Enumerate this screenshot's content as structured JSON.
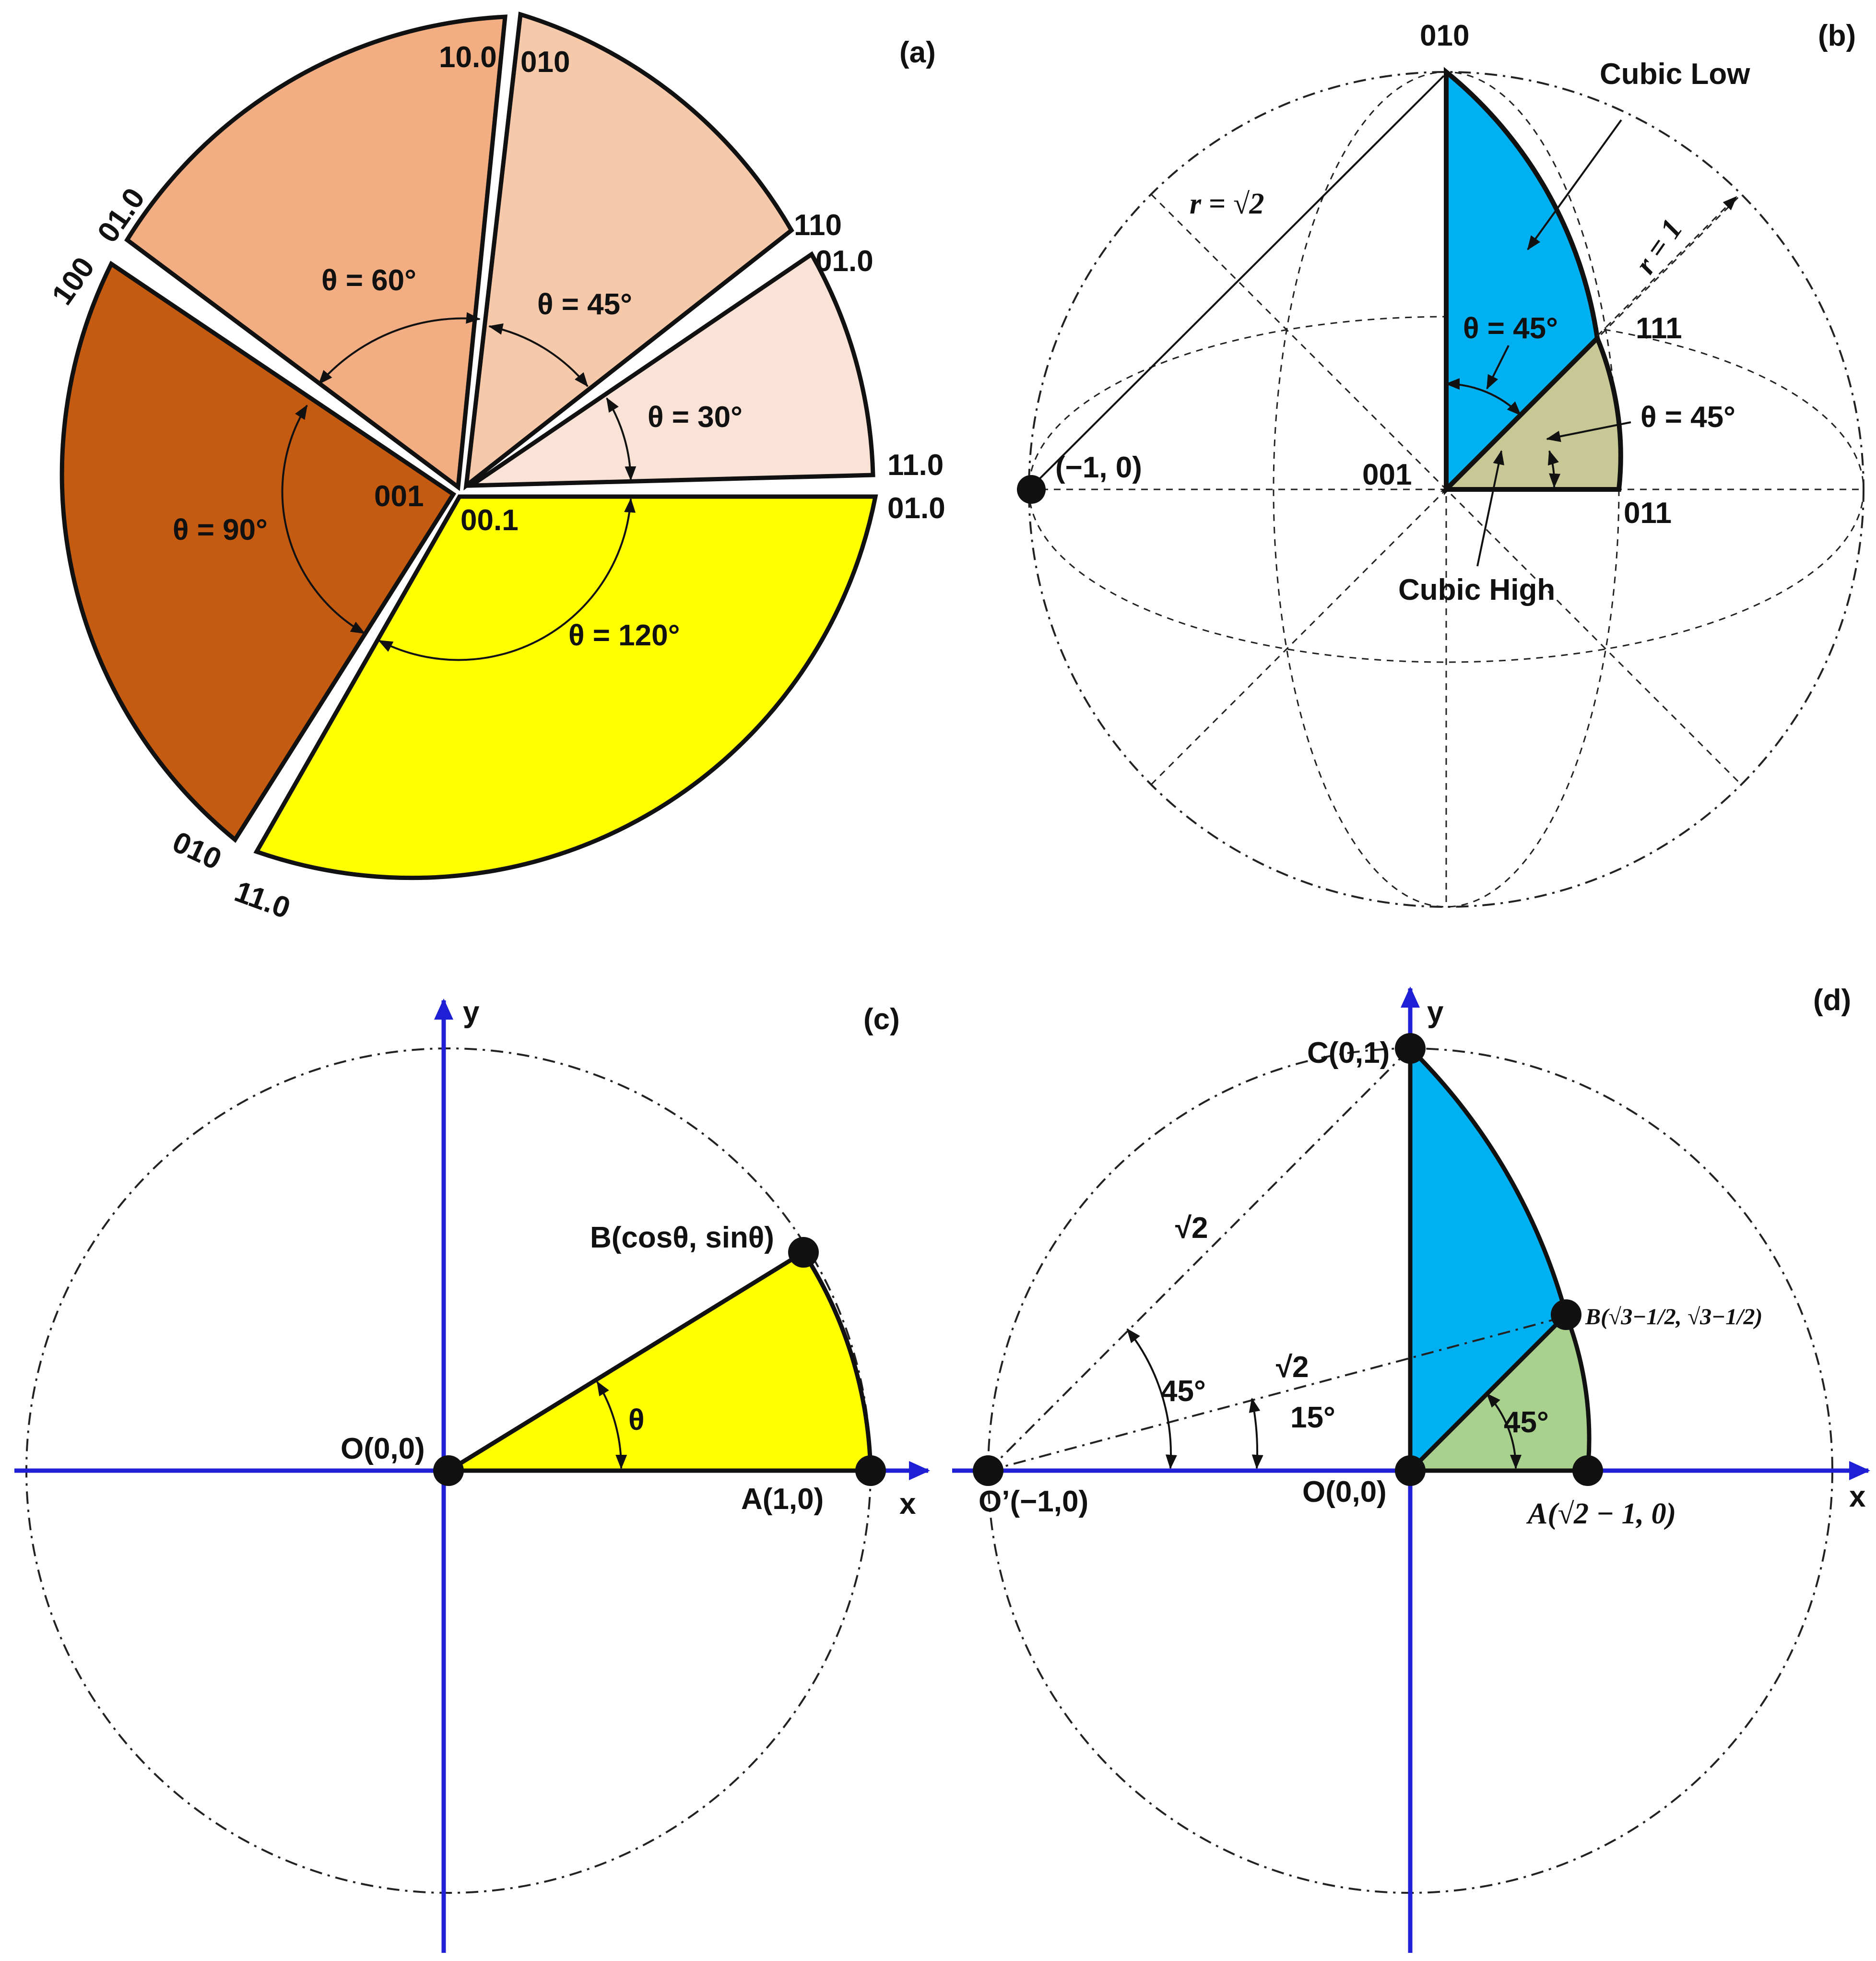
{
  "panels": {
    "a": {
      "tag": "(a)",
      "sectors": [
        {
          "theta": "θ = 60°",
          "color": "#F2AE82",
          "edge_labels": [
            "10.0",
            "01.0"
          ]
        },
        {
          "theta": "θ = 45°",
          "color": "#F6C9AA",
          "edge_labels": [
            "010",
            "110"
          ]
        },
        {
          "theta": "θ = 30°",
          "color": "#FAE3D6",
          "edge_labels": [
            "01.0",
            "11.0"
          ]
        },
        {
          "theta": "θ = 120°",
          "color": "#FFFF00",
          "edge_labels": [
            "01.0",
            "11.0"
          ]
        },
        {
          "theta": "θ = 90°",
          "color": "#C55A11",
          "edge_labels": [
            "010",
            "100"
          ]
        }
      ],
      "center_labels": [
        "001",
        "00.1"
      ]
    },
    "b": {
      "tag": "(b)",
      "cubic_low": {
        "label": "Cubic Low",
        "color": "#00B0F0"
      },
      "cubic_high": {
        "label": "Cubic High",
        "color": "#C8C896"
      },
      "r_sqrt2": "r = √2",
      "r_one": "r = 1",
      "theta_low": "θ = 45°",
      "theta_high": "θ = 45°",
      "pole_010": "010",
      "pole_111": "111",
      "pole_001": "001",
      "pole_011": "011",
      "point_left": "(−1, 0)"
    },
    "c": {
      "tag": "(c)",
      "x_axis": "x",
      "y_axis": "y",
      "origin": "O(0,0)",
      "point_a": "A(1,0)",
      "point_b": "B(cosθ, sinθ)",
      "theta": "θ",
      "sector_color": "#FFFF00"
    },
    "d": {
      "tag": "(d)",
      "x_axis": "x",
      "y_axis": "y",
      "point_c": "C(0,1)",
      "point_o": "O(0,0)",
      "point_o_prime": "O’(−1,0)",
      "point_b": "B(√3−1/2, √3−1/2)",
      "point_a": "A(√2 − 1, 0)",
      "sqrt2_upper": "√2",
      "sqrt2_lower": "√2",
      "angle_45_left": "45°",
      "angle_15": "15°",
      "angle_45_right": "45°",
      "blue_color": "#00B0F0",
      "green_color": "#A9D18E"
    }
  }
}
